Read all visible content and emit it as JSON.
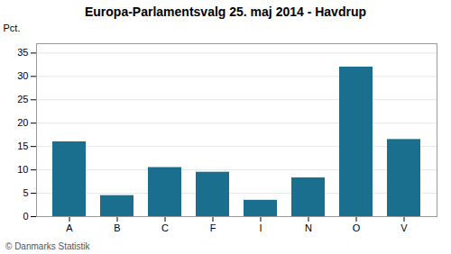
{
  "chart_data": {
    "type": "bar",
    "title": "Europa-Parlamentsvalg 25. maj 2014 - Havdrup",
    "categories": [
      "A",
      "B",
      "C",
      "F",
      "I",
      "N",
      "O",
      "V"
    ],
    "values": [
      16.0,
      4.5,
      10.5,
      9.5,
      3.5,
      8.3,
      32.0,
      16.5
    ],
    "color": "#1a6e8e",
    "ylabel": "Pct.",
    "ylim": [
      0,
      37
    ],
    "yticks": [
      0,
      5,
      10,
      15,
      20,
      25,
      30,
      35
    ],
    "grid": true,
    "annotations": [
      "© Danmarks Statistik"
    ]
  }
}
